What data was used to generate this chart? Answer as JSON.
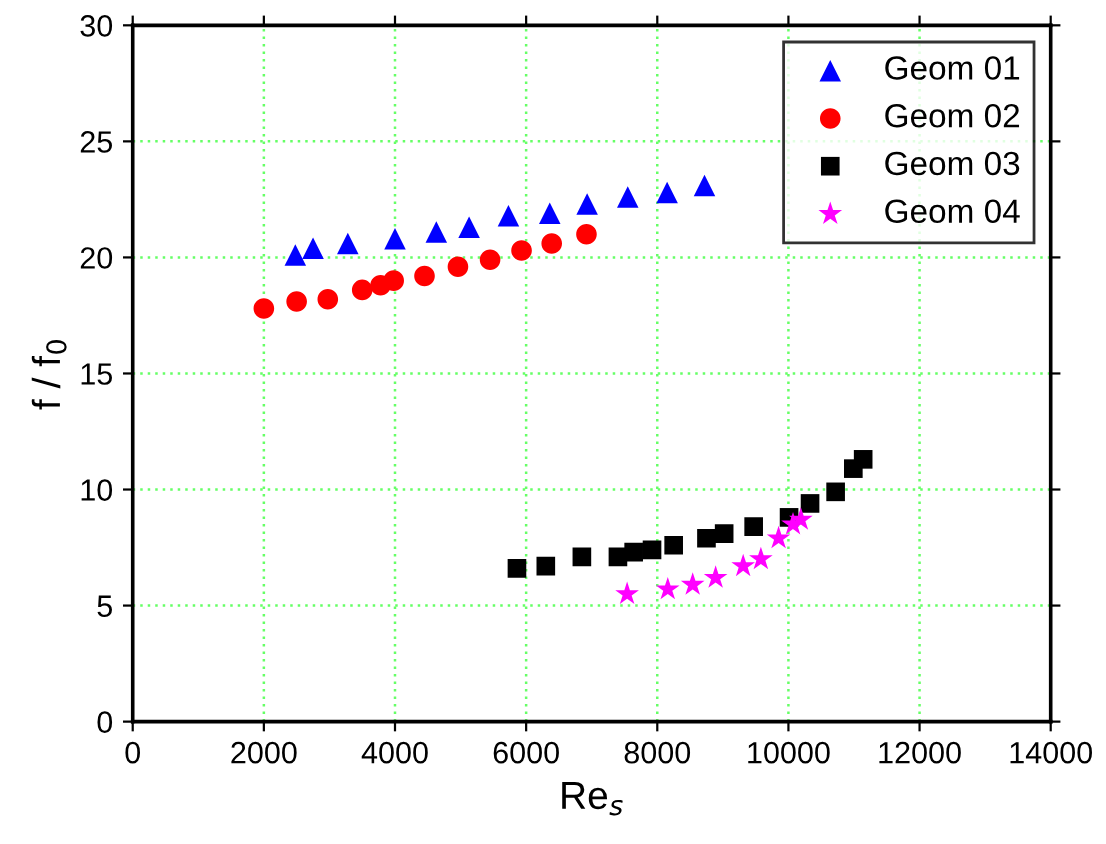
{
  "chart_data": {
    "type": "scatter",
    "xlabel": "Re$_{s}$",
    "ylabel": "f / f$_{0}$",
    "xlim": [
      0,
      14000
    ],
    "ylim": [
      0,
      30
    ],
    "xticks": [
      0,
      2000,
      4000,
      6000,
      8000,
      10000,
      12000,
      14000
    ],
    "yticks": [
      0,
      5,
      10,
      15,
      20,
      25,
      30
    ],
    "grid": true,
    "legend": "top right",
    "series": [
      {
        "name": "Geom 01",
        "color": "#0000ff",
        "marker": "triangle",
        "x": [
          2480,
          2750,
          3280,
          4000,
          4630,
          5130,
          5730,
          6360,
          6930,
          7550,
          8150,
          8720
        ],
        "values": [
          20.1,
          20.4,
          20.6,
          20.8,
          21.1,
          21.3,
          21.8,
          21.9,
          22.3,
          22.6,
          22.8,
          23.1
        ]
      },
      {
        "name": "Geom 02",
        "color": "#ff0000",
        "marker": "circle",
        "x": [
          2000,
          2500,
          2975,
          3500,
          3780,
          3980,
          4450,
          4960,
          5450,
          5930,
          6390,
          6920
        ],
        "values": [
          17.8,
          18.1,
          18.2,
          18.6,
          18.8,
          19.0,
          19.2,
          19.6,
          19.9,
          20.3,
          20.6,
          21.0
        ]
      },
      {
        "name": "Geom 03",
        "color": "#000000",
        "marker": "square",
        "x": [
          5860,
          6300,
          6850,
          7400,
          7640,
          7920,
          8250,
          8750,
          9020,
          9470,
          10010,
          10330,
          10720,
          10990,
          11140
        ],
        "values": [
          6.6,
          6.7,
          7.1,
          7.1,
          7.3,
          7.4,
          7.6,
          7.9,
          8.1,
          8.4,
          8.8,
          9.4,
          9.9,
          10.9,
          11.3
        ]
      },
      {
        "name": "Geom 04",
        "color": "#ff00ff",
        "marker": "star",
        "x": [
          7540,
          8160,
          8540,
          8890,
          9310,
          9580,
          9850,
          10070,
          10190
        ],
        "values": [
          5.5,
          5.7,
          5.9,
          6.2,
          6.7,
          7.0,
          7.9,
          8.5,
          8.7
        ]
      }
    ]
  }
}
